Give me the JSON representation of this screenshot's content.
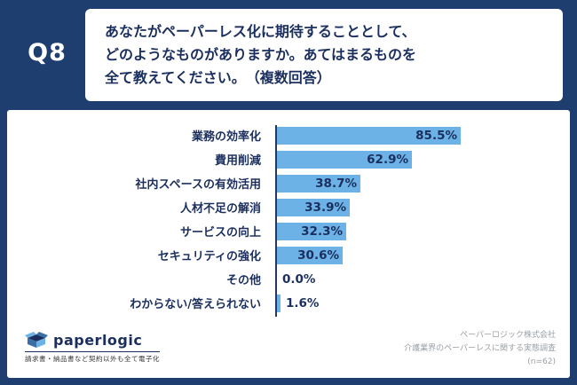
{
  "header": {
    "q_label": "Q8",
    "question_lines": [
      "あなたがペーパーレス化に期待することとして、",
      "どのようなものがありますか。あてはまるものを",
      "全て教えてください。　（複数回答）"
    ]
  },
  "chart_data": {
    "type": "bar",
    "orientation": "horizontal",
    "title": "",
    "categories": [
      "業務の効率化",
      "費用削減",
      "社内スペースの有効活用",
      "人材不足の解消",
      "サービスの向上",
      "セキュリティの強化",
      "その他",
      "わからない/答えられない"
    ],
    "values": [
      85.5,
      62.9,
      38.7,
      33.9,
      32.3,
      30.6,
      0.0,
      1.6
    ],
    "value_labels": [
      "85.5%",
      "62.9%",
      "38.7%",
      "33.9%",
      "32.3%",
      "30.6%",
      "0.0%",
      "1.6%"
    ],
    "xlim": [
      0,
      100
    ],
    "grid": false,
    "legend": false,
    "bar_color": "#6db2e6",
    "label_color": "#1b2f5e"
  },
  "footer": {
    "logo_text": "paperlogic",
    "logo_tagline": "請求書・納品書など契約以外も全て電子化",
    "source_lines": [
      "ペーパーロジック株式会社",
      "介護業界のペーパーレスに関する実態調査",
      "(n=62)"
    ]
  },
  "colors": {
    "background": "#1e3e70",
    "panel": "#ffffff",
    "bar": "#6db2e6",
    "text": "#1b2f5e"
  }
}
